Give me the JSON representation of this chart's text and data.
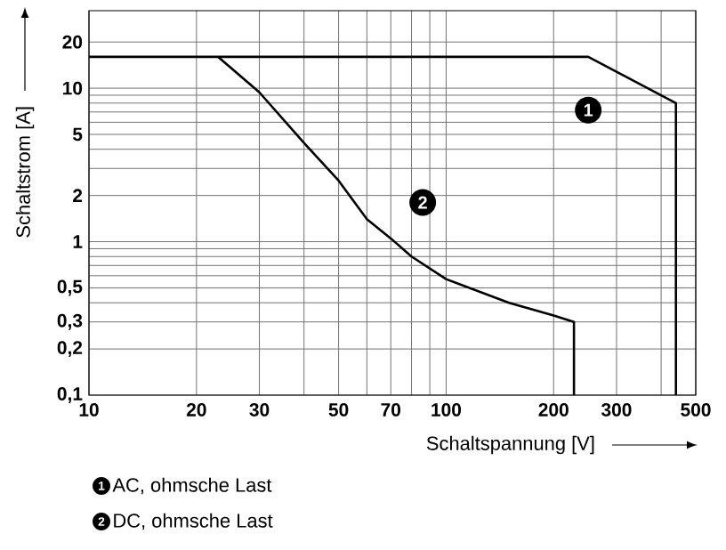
{
  "chart_data": {
    "type": "line",
    "xlabel": "Schaltspannung [V]",
    "ylabel": "Schaltstrom [A]",
    "log": "xy",
    "grid": true,
    "legend": "bottom",
    "marker": "none",
    "line_style": "solid",
    "xlim": [
      10,
      500
    ],
    "ylim": [
      0.1,
      32
    ],
    "xticks": [
      10,
      20,
      30,
      {
        "value": 40,
        "label": null
      },
      50,
      {
        "value": 60,
        "label": null
      },
      70,
      {
        "value": 80,
        "label": null
      },
      {
        "value": 90,
        "label": null
      },
      100,
      200,
      300,
      {
        "value": 400,
        "label": null
      },
      500
    ],
    "yticks": [
      {
        "value": 0.1,
        "label": "0,1"
      },
      {
        "value": 0.2,
        "label": "0,2"
      },
      {
        "value": 0.3,
        "label": "0,3"
      },
      {
        "value": 0.4,
        "label": null
      },
      {
        "value": 0.5,
        "label": "0,5"
      },
      {
        "value": 0.6,
        "label": null
      },
      {
        "value": 0.7,
        "label": null
      },
      {
        "value": 0.8,
        "label": null
      },
      {
        "value": 0.9,
        "label": null
      },
      1,
      2,
      {
        "value": 3,
        "label": null
      },
      {
        "value": 4,
        "label": null
      },
      5,
      {
        "value": 6,
        "label": null
      },
      {
        "value": 7,
        "label": null
      },
      {
        "value": 8,
        "label": null
      },
      {
        "value": 9,
        "label": null
      },
      10,
      20
    ],
    "series": [
      {
        "name": "AC, ohmsche Last",
        "color": "#000000",
        "x": [
          10,
          250,
          440,
          440
        ],
        "values": [
          16,
          16,
          8,
          0.1
        ]
      },
      {
        "name": "DC, ohmsche Last",
        "color": "#000000",
        "x": [
          23,
          30,
          40,
          50,
          60,
          70,
          80,
          100,
          150,
          200,
          228,
          228
        ],
        "values": [
          16,
          9.4,
          4.4,
          2.5,
          1.4,
          1.05,
          0.8,
          0.57,
          0.4,
          0.33,
          0.3,
          0.1
        ]
      }
    ],
    "annotations": [
      {
        "text": "1",
        "x": 250,
        "y": 7.2
      },
      {
        "text": "2",
        "x": 86,
        "y": 1.8
      }
    ]
  }
}
